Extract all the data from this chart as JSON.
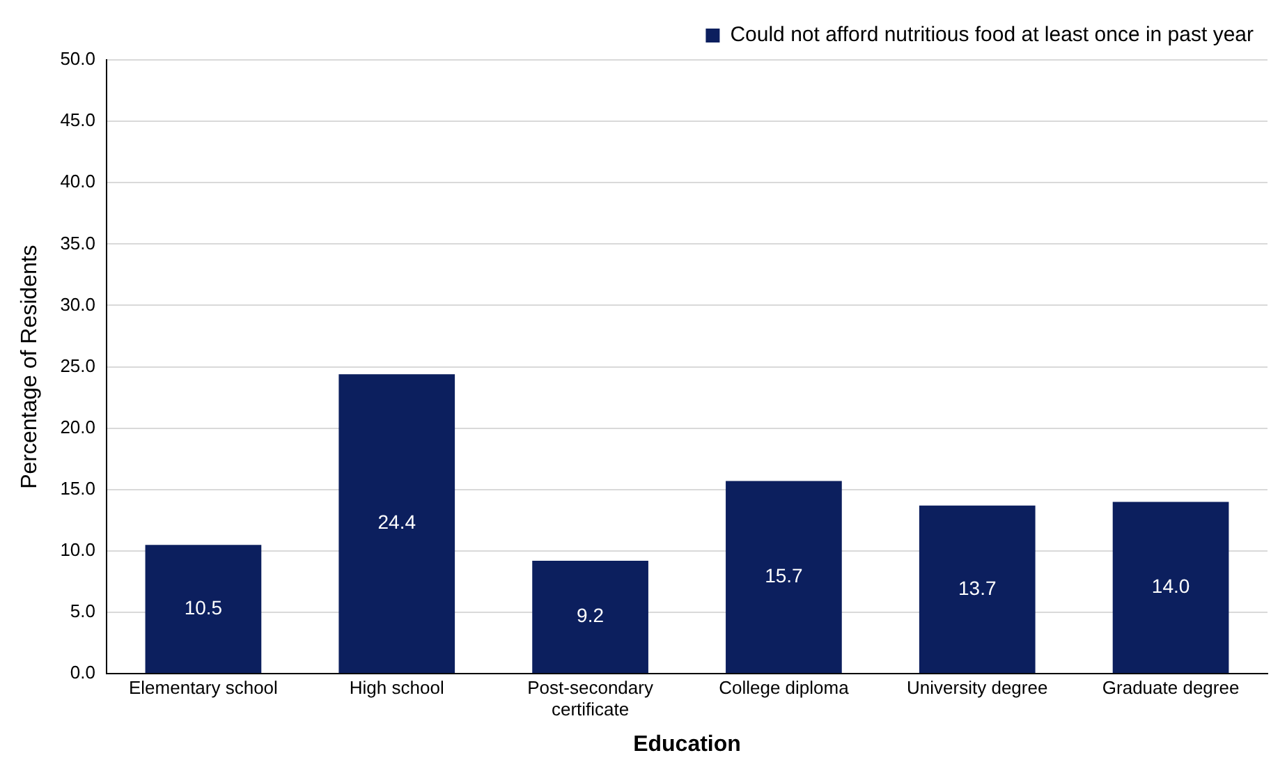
{
  "chart_data": {
    "type": "bar",
    "xlabel": "Education",
    "ylabel": "Percentage of Residents",
    "categories": [
      "Elementary school",
      "High school",
      "Post-secondary certificate",
      "College diploma",
      "University degree",
      "Graduate degree"
    ],
    "series": [
      {
        "name": "Could not afford nutritious food at least once in past year",
        "color": "#0c1f5e",
        "values": [
          10.5,
          24.4,
          9.2,
          15.7,
          13.7,
          14.0
        ],
        "value_labels": [
          "10.5",
          "24.4",
          "9.2",
          "15.7",
          "13.7",
          "14.0"
        ]
      }
    ],
    "ylim": [
      0,
      50
    ],
    "yticks": [
      {
        "value": 0,
        "label": "0.0"
      },
      {
        "value": 5,
        "label": "5.0"
      },
      {
        "value": 10,
        "label": "10.0"
      },
      {
        "value": 15,
        "label": "15.0"
      },
      {
        "value": 20,
        "label": "20.0"
      },
      {
        "value": 25,
        "label": "25.0"
      },
      {
        "value": 30,
        "label": "30.0"
      },
      {
        "value": 35,
        "label": "35.0"
      },
      {
        "value": 40,
        "label": "40.0"
      },
      {
        "value": 45,
        "label": "45.0"
      },
      {
        "value": 50,
        "label": "50.0"
      }
    ],
    "grid": "y",
    "legend": "top right"
  }
}
